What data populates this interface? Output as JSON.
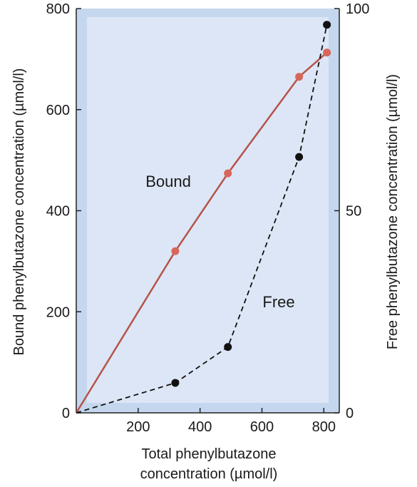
{
  "chart_data": {
    "type": "line",
    "xlabel_line1": "Total phenylbutazone",
    "xlabel_line2": "concentration (µmol/l)",
    "ylabel_left": "Bound phenylbutazone concentration (µmol/l)",
    "ylabel_right": "Free phenylbutazone concentration (µmol/l)",
    "xlim": [
      0,
      850
    ],
    "ylim_left": [
      0,
      800
    ],
    "ylim_right": [
      0,
      100
    ],
    "x_ticks": [
      200,
      400,
      600,
      800
    ],
    "x_tick_labels": [
      "200",
      "400",
      "600",
      "800"
    ],
    "y_left_ticks": [
      0,
      200,
      400,
      600,
      800
    ],
    "y_left_tick_labels": [
      "0",
      "200",
      "400",
      "600",
      "800"
    ],
    "y_right_ticks": [
      0,
      50,
      100
    ],
    "y_right_tick_labels": [
      "0",
      "50",
      "100"
    ],
    "colors": {
      "outer_frame": "#c5d7ee",
      "plot_background": "#dde6f6",
      "bound_line": "#b5544a",
      "bound_marker": "#d9665a",
      "free_line": "#111111",
      "free_marker": "#111111"
    },
    "series": [
      {
        "name": "Bound",
        "axis": "left",
        "style": "solid",
        "x": [
          0,
          320,
          490,
          720,
          810
        ],
        "y": [
          0,
          320,
          474,
          665,
          713
        ]
      },
      {
        "name": "Free",
        "axis": "right",
        "style": "dashed",
        "x": [
          0,
          320,
          490,
          720,
          810
        ],
        "y": [
          0,
          7.4,
          16.3,
          63.3,
          96
        ]
      }
    ]
  }
}
